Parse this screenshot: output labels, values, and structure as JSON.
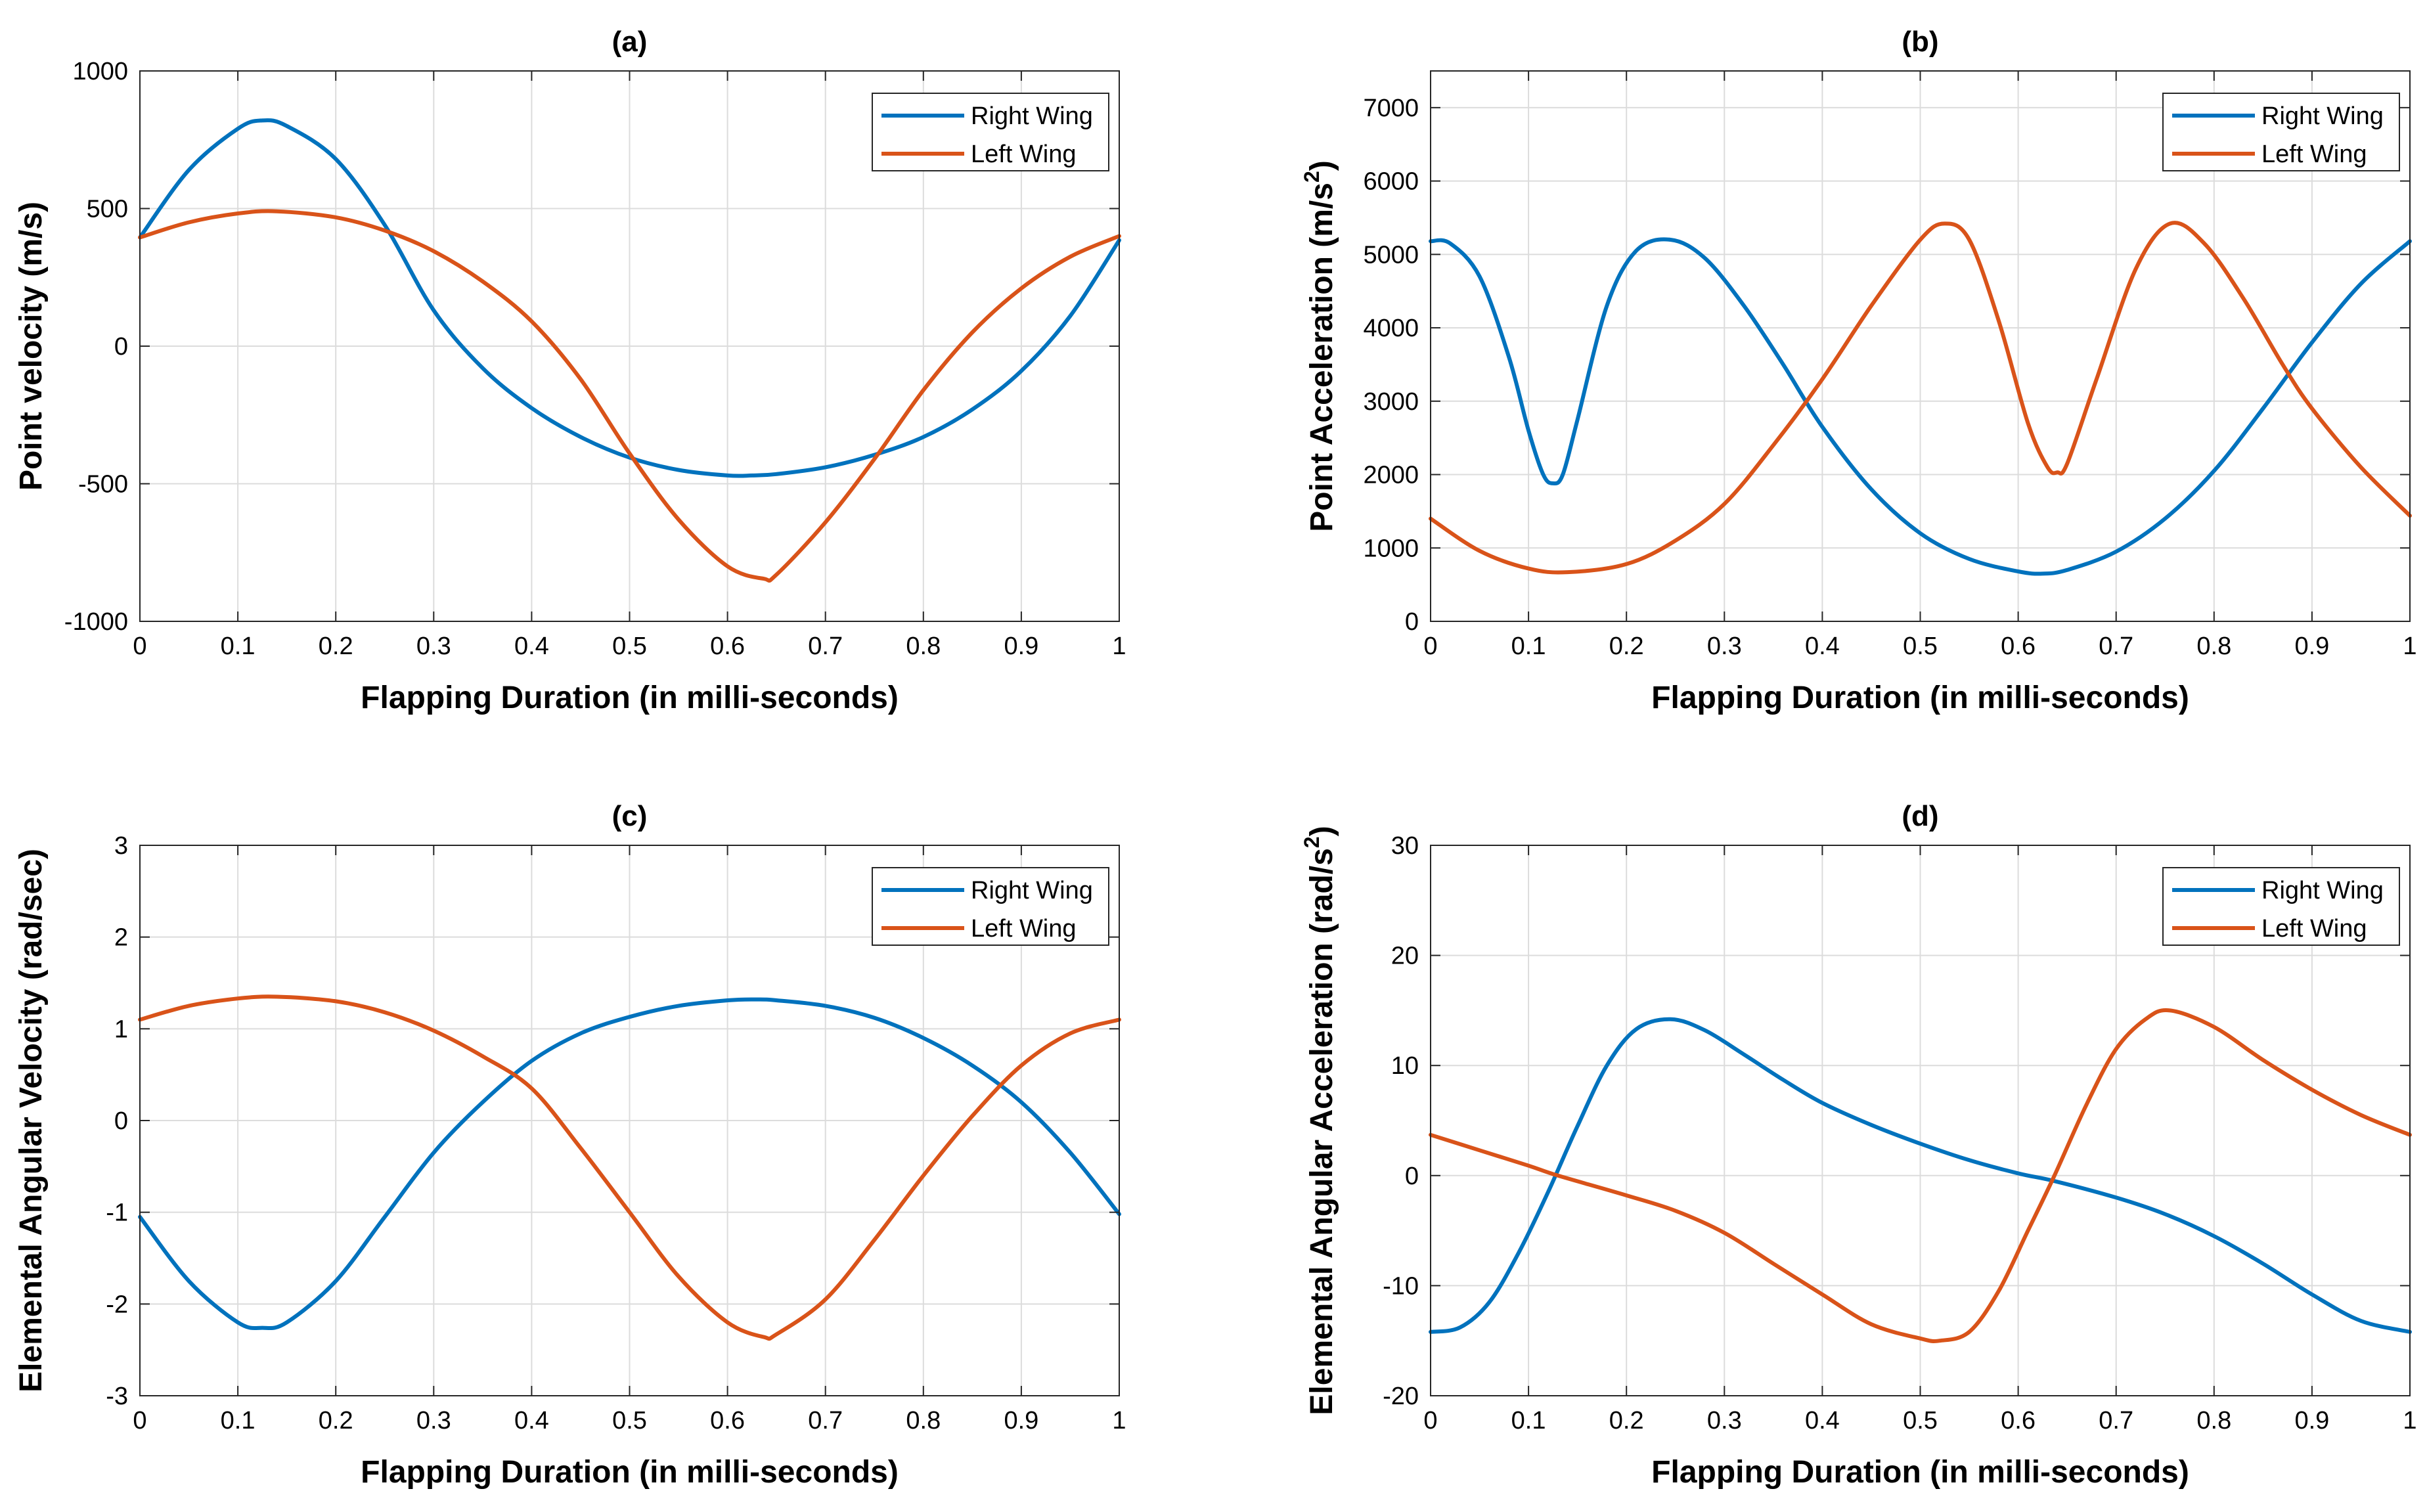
{
  "colors": {
    "right_wing": "#0072bd",
    "left_wing": "#d95319",
    "grid": "#dcdcdc",
    "axes": "#262626"
  },
  "chart_data": [
    {
      "type": "line",
      "title": "(a)",
      "xlabel": "Flapping Duration (in milli-seconds)",
      "ylabel": "Point velocity (m/s)",
      "ylabel_sup": "",
      "ylabel_tail": "",
      "xlim": [
        0,
        1
      ],
      "ylim": [
        -1000,
        1000
      ],
      "xticks": [
        0,
        0.1,
        0.2,
        0.3,
        0.4,
        0.5,
        0.6,
        0.7,
        0.8,
        0.9,
        1
      ],
      "xtick_labels": [
        "0",
        "0.1",
        "0.2",
        "0.3",
        "0.4",
        "0.5",
        "0.6",
        "0.7",
        "0.8",
        "0.9",
        "1"
      ],
      "yticks": [
        -1000,
        -500,
        0,
        500,
        1000
      ],
      "ytick_labels": [
        "-1000",
        "-500",
        "0",
        "500",
        "1000"
      ],
      "grid": true,
      "legend_position": "top-right",
      "series": [
        {
          "name": "Right Wing",
          "color": "#0072bd",
          "x": [
            0,
            0.05,
            0.1,
            0.125,
            0.15,
            0.2,
            0.25,
            0.3,
            0.35,
            0.4,
            0.45,
            0.5,
            0.55,
            0.6,
            0.625,
            0.65,
            0.7,
            0.75,
            0.8,
            0.85,
            0.9,
            0.95,
            1
          ],
          "y": [
            395,
            640,
            790,
            820,
            800,
            680,
            440,
            130,
            -80,
            -225,
            -330,
            -405,
            -450,
            -470,
            -470,
            -465,
            -440,
            -395,
            -330,
            -230,
            -90,
            110,
            385
          ]
        },
        {
          "name": "Left Wing",
          "color": "#d95319",
          "x": [
            0,
            0.05,
            0.1,
            0.14,
            0.2,
            0.25,
            0.3,
            0.35,
            0.4,
            0.45,
            0.5,
            0.55,
            0.6,
            0.637,
            0.65,
            0.7,
            0.75,
            0.8,
            0.85,
            0.9,
            0.95,
            1
          ],
          "y": [
            395,
            450,
            482,
            490,
            468,
            420,
            345,
            235,
            90,
            -120,
            -390,
            -630,
            -800,
            -845,
            -830,
            -640,
            -410,
            -160,
            50,
            210,
            325,
            400
          ]
        }
      ]
    },
    {
      "type": "line",
      "title": "(b)",
      "xlabel": "Flapping Duration (in milli-seconds)",
      "ylabel": "Point Acceleration (m/s",
      "ylabel_sup": "2",
      "ylabel_tail": ")",
      "xlim": [
        0,
        1
      ],
      "ylim": [
        0,
        7500
      ],
      "xticks": [
        0,
        0.1,
        0.2,
        0.3,
        0.4,
        0.5,
        0.6,
        0.7,
        0.8,
        0.9,
        1
      ],
      "xtick_labels": [
        "0",
        "0.1",
        "0.2",
        "0.3",
        "0.4",
        "0.5",
        "0.6",
        "0.7",
        "0.8",
        "0.9",
        "1"
      ],
      "yticks": [
        0,
        1000,
        2000,
        3000,
        4000,
        5000,
        6000,
        7000
      ],
      "ytick_labels": [
        "0",
        "1000",
        "2000",
        "3000",
        "4000",
        "5000",
        "6000",
        "7000"
      ],
      "grid": true,
      "legend_position": "top-right",
      "series": [
        {
          "name": "Right Wing",
          "color": "#0072bd",
          "x": [
            0,
            0.02,
            0.05,
            0.08,
            0.1,
            0.115,
            0.125,
            0.135,
            0.15,
            0.18,
            0.21,
            0.245,
            0.28,
            0.32,
            0.36,
            0.4,
            0.45,
            0.5,
            0.55,
            0.6,
            0.625,
            0.65,
            0.7,
            0.75,
            0.8,
            0.85,
            0.9,
            0.95,
            1
          ],
          "y": [
            5180,
            5150,
            4700,
            3600,
            2600,
            2000,
            1880,
            2000,
            2750,
            4300,
            5050,
            5200,
            4950,
            4300,
            3500,
            2650,
            1800,
            1200,
            850,
            680,
            650,
            700,
            950,
            1400,
            2050,
            2900,
            3800,
            4600,
            5180
          ]
        },
        {
          "name": "Left Wing",
          "color": "#d95319",
          "x": [
            0,
            0.05,
            0.1,
            0.14,
            0.2,
            0.25,
            0.3,
            0.35,
            0.4,
            0.45,
            0.5,
            0.525,
            0.55,
            0.58,
            0.61,
            0.63,
            0.64,
            0.65,
            0.68,
            0.72,
            0.755,
            0.79,
            0.83,
            0.87,
            0.9,
            0.95,
            1
          ],
          "y": [
            1400,
            960,
            720,
            670,
            780,
            1100,
            1600,
            2400,
            3300,
            4300,
            5200,
            5420,
            5200,
            4100,
            2700,
            2100,
            2030,
            2150,
            3300,
            4800,
            5420,
            5150,
            4400,
            3500,
            2900,
            2100,
            1440
          ]
        }
      ]
    },
    {
      "type": "line",
      "title": "(c)",
      "xlabel": "Flapping Duration (in milli-seconds)",
      "ylabel": "Elemental Angular Velocity (rad/sec)",
      "ylabel_sup": "",
      "ylabel_tail": "",
      "xlim": [
        0,
        1
      ],
      "ylim": [
        -3,
        3
      ],
      "xticks": [
        0,
        0.1,
        0.2,
        0.3,
        0.4,
        0.5,
        0.6,
        0.7,
        0.8,
        0.9,
        1
      ],
      "xtick_labels": [
        "0",
        "0.1",
        "0.2",
        "0.3",
        "0.4",
        "0.5",
        "0.6",
        "0.7",
        "0.8",
        "0.9",
        "1"
      ],
      "yticks": [
        -3,
        -2,
        -1,
        0,
        1,
        2,
        3
      ],
      "ytick_labels": [
        "-3",
        "-2",
        "-1",
        "0",
        "1",
        "2",
        "3"
      ],
      "grid": true,
      "legend_position": "top-right",
      "series": [
        {
          "name": "Right Wing",
          "color": "#0072bd",
          "x": [
            0,
            0.05,
            0.1,
            0.125,
            0.15,
            0.2,
            0.25,
            0.3,
            0.35,
            0.4,
            0.45,
            0.5,
            0.55,
            0.6,
            0.63,
            0.65,
            0.7,
            0.75,
            0.8,
            0.85,
            0.9,
            0.95,
            1
          ],
          "y": [
            -1.05,
            -1.75,
            -2.2,
            -2.26,
            -2.2,
            -1.75,
            -1.05,
            -0.35,
            0.2,
            0.65,
            0.95,
            1.13,
            1.25,
            1.31,
            1.32,
            1.31,
            1.25,
            1.12,
            0.9,
            0.6,
            0.2,
            -0.35,
            -1.02
          ]
        },
        {
          "name": "Left Wing",
          "color": "#d95319",
          "x": [
            0,
            0.05,
            0.1,
            0.14,
            0.2,
            0.25,
            0.3,
            0.35,
            0.4,
            0.45,
            0.5,
            0.55,
            0.6,
            0.637,
            0.65,
            0.7,
            0.75,
            0.8,
            0.85,
            0.9,
            0.95,
            1
          ],
          "y": [
            1.1,
            1.25,
            1.33,
            1.35,
            1.3,
            1.18,
            0.98,
            0.7,
            0.35,
            -0.3,
            -1.0,
            -1.7,
            -2.2,
            -2.36,
            -2.33,
            -1.95,
            -1.3,
            -0.6,
            0.05,
            0.6,
            0.95,
            1.1
          ]
        }
      ]
    },
    {
      "type": "line",
      "title": "(d)",
      "xlabel": "Flapping Duration (in milli-seconds)",
      "ylabel": "Elemental Angular Acceleration (rad/s",
      "ylabel_sup": "2",
      "ylabel_tail": ")",
      "xlim": [
        0,
        1
      ],
      "ylim": [
        -20,
        30
      ],
      "xticks": [
        0,
        0.1,
        0.2,
        0.3,
        0.4,
        0.5,
        0.6,
        0.7,
        0.8,
        0.9,
        1
      ],
      "xtick_labels": [
        "0",
        "0.1",
        "0.2",
        "0.3",
        "0.4",
        "0.5",
        "0.6",
        "0.7",
        "0.8",
        "0.9",
        "1"
      ],
      "yticks": [
        -20,
        -10,
        0,
        10,
        20,
        30
      ],
      "ytick_labels": [
        "-20",
        "-10",
        "0",
        "10",
        "20",
        "30"
      ],
      "grid": true,
      "legend_position": "top-right",
      "series": [
        {
          "name": "Right Wing",
          "color": "#0072bd",
          "x": [
            0,
            0.03,
            0.06,
            0.09,
            0.12,
            0.15,
            0.18,
            0.21,
            0.245,
            0.28,
            0.32,
            0.36,
            0.4,
            0.45,
            0.5,
            0.55,
            0.6,
            0.637,
            0.7,
            0.75,
            0.8,
            0.85,
            0.9,
            0.95,
            1
          ],
          "y": [
            -14.2,
            -13.8,
            -11.5,
            -7.0,
            -1.5,
            4.5,
            10.0,
            13.3,
            14.2,
            13.2,
            11.0,
            8.7,
            6.6,
            4.6,
            2.9,
            1.4,
            0.2,
            -0.5,
            -2.0,
            -3.5,
            -5.5,
            -8.0,
            -10.8,
            -13.2,
            -14.2
          ]
        },
        {
          "name": "Left Wing",
          "color": "#d95319",
          "x": [
            0,
            0.05,
            0.1,
            0.13,
            0.2,
            0.25,
            0.3,
            0.35,
            0.4,
            0.45,
            0.5,
            0.52,
            0.55,
            0.58,
            0.61,
            0.637,
            0.67,
            0.7,
            0.73,
            0.755,
            0.8,
            0.85,
            0.9,
            0.95,
            1
          ],
          "y": [
            3.7,
            2.3,
            0.9,
            0.0,
            -1.8,
            -3.2,
            -5.2,
            -8.0,
            -10.8,
            -13.5,
            -14.8,
            -15.0,
            -14.2,
            -10.5,
            -5.0,
            0.0,
            6.5,
            11.5,
            14.2,
            15.0,
            13.5,
            10.5,
            7.8,
            5.5,
            3.7
          ]
        }
      ]
    }
  ]
}
